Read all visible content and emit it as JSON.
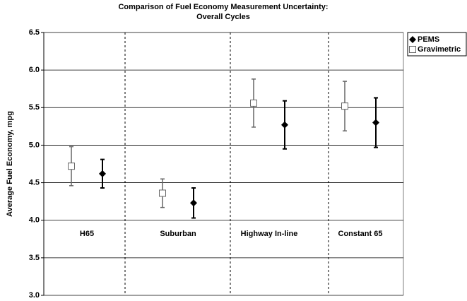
{
  "chart_data": {
    "type": "errorbar",
    "title": [
      "Comparison of Fuel Economy Measurement Uncertainty:",
      "Overall Cycles"
    ],
    "y_label": "Average Fuel Economy, mpg",
    "categories": [
      "H65",
      "Suburban",
      "Highway In-line",
      "Constant 65"
    ],
    "series": [
      {
        "name": "PEMS",
        "color": "#000000",
        "marker": "diamond",
        "values": [
          4.62,
          4.23,
          5.27,
          5.3
        ],
        "errors": [
          0.19,
          0.2,
          0.32,
          0.33
        ]
      },
      {
        "name": "Gravimetric",
        "color": "#666666",
        "marker": "open-square",
        "values": [
          4.72,
          4.36,
          5.56,
          5.52
        ],
        "errors": [
          0.26,
          0.19,
          0.32,
          0.33
        ]
      }
    ],
    "ylim": [
      3.0,
      6.5
    ],
    "yticks": [
      {
        "value": 3.0,
        "label": "3.0"
      },
      3.5,
      {
        "value": 4.0,
        "label": "4.0"
      },
      4.5,
      {
        "value": 5.0,
        "label": "5.0"
      },
      5.5,
      {
        "value": 6.0,
        "label": "6.0"
      },
      6.5
    ],
    "grid": true,
    "legend": "right"
  }
}
